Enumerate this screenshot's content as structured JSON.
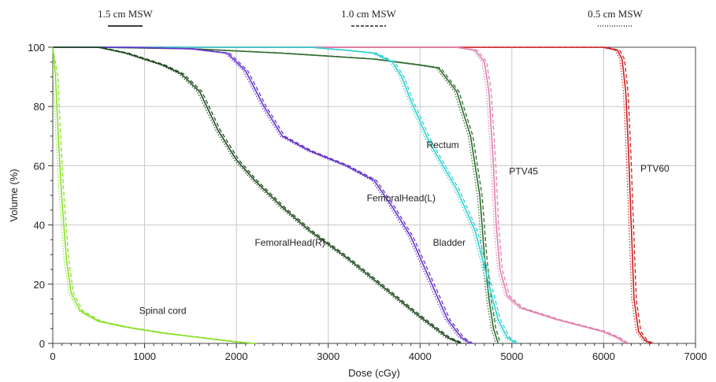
{
  "chart_data": {
    "type": "line",
    "title": "",
    "xlabel": "Dose (cGy)",
    "ylabel": "Volume (%)",
    "xlim": [
      0,
      7000
    ],
    "ylim": [
      0,
      100
    ],
    "x_ticks": [
      "0",
      "1000",
      "2000",
      "3000",
      "4000",
      "5000",
      "6000",
      "7000"
    ],
    "y_ticks": [
      "0",
      "20",
      "40",
      "60",
      "80",
      "100"
    ],
    "grid": true,
    "legend_position": "top",
    "legend": [
      {
        "label": "1.5 cm MSW",
        "style": "solid"
      },
      {
        "label": "1.0 cm MSW",
        "style": "dashed"
      },
      {
        "label": "0.5 cm MSW",
        "style": "dotted"
      }
    ],
    "structures": [
      {
        "name": "PTV60",
        "label": "PTV60",
        "color": "#cc1f1f",
        "label_pos": [
          6400,
          58
        ],
        "x": [
          0,
          6000,
          6150,
          6200,
          6240,
          6270,
          6300,
          6330,
          6380,
          6450,
          6520
        ],
        "y": [
          100,
          100,
          99,
          96,
          85,
          65,
          40,
          15,
          4,
          1,
          0
        ]
      },
      {
        "name": "PTV45",
        "label": "PTV45",
        "color": "#e07fae",
        "label_pos": [
          4970,
          57
        ],
        "x": [
          0,
          4400,
          4600,
          4700,
          4750,
          4800,
          4830,
          4870,
          4950,
          5100,
          5500,
          6000,
          6150,
          6250
        ],
        "y": [
          100,
          100,
          99,
          95,
          85,
          60,
          40,
          25,
          16,
          12,
          8,
          4,
          2,
          0
        ]
      },
      {
        "name": "Rectum",
        "label": "Rectum",
        "color": "#2e6b2e",
        "label_pos": [
          4070,
          66
        ],
        "x": [
          0,
          500,
          1500,
          2500,
          3500,
          4000,
          4200,
          4400,
          4550,
          4650,
          4700,
          4750,
          4800,
          4850
        ],
        "y": [
          100,
          100,
          99.5,
          98,
          96,
          94,
          93,
          85,
          70,
          50,
          30,
          15,
          5,
          0
        ]
      },
      {
        "name": "Bladder",
        "label": "Bladder",
        "color": "#30d0d0",
        "label_pos": [
          4140,
          33
        ],
        "x": [
          0,
          2800,
          3200,
          3500,
          3700,
          3800,
          3900,
          4100,
          4400,
          4600,
          4750,
          4850,
          4950,
          5050
        ],
        "y": [
          100,
          100,
          99,
          98,
          95,
          90,
          82,
          68,
          52,
          38,
          20,
          8,
          2,
          0
        ]
      },
      {
        "name": "FemoralHead(L)",
        "label": "FemoralHead(L)",
        "color": "#6633cc",
        "label_pos": [
          3420,
          48
        ],
        "x": [
          0,
          800,
          1500,
          1900,
          2100,
          2300,
          2500,
          2800,
          3200,
          3500,
          3700,
          3900,
          4100,
          4300,
          4450,
          4550
        ],
        "y": [
          100,
          100,
          99.5,
          98,
          92,
          80,
          70,
          65,
          60,
          55,
          46,
          36,
          22,
          8,
          2,
          0
        ]
      },
      {
        "name": "FemoralHead(R)",
        "label": "FemoralHead(R)",
        "color": "#1e4a1e",
        "label_pos": [
          2200,
          33
        ],
        "x": [
          0,
          500,
          800,
          1000,
          1200,
          1400,
          1600,
          1800,
          2000,
          2200,
          2500,
          2800,
          3200,
          3600,
          4000,
          4300,
          4450
        ],
        "y": [
          100,
          100,
          98,
          96,
          94,
          91,
          85,
          72,
          62,
          55,
          46,
          38,
          29,
          19,
          9,
          2,
          0
        ]
      },
      {
        "name": "Spinal cord",
        "label": "Spinal cord",
        "color": "#88e02a",
        "label_pos": [
          940,
          10
        ],
        "x": [
          0,
          30,
          60,
          100,
          150,
          200,
          300,
          500,
          800,
          1200,
          1600,
          2000,
          2200
        ],
        "y": [
          100,
          90,
          70,
          48,
          28,
          17,
          11,
          7.5,
          5.5,
          3.5,
          2,
          0.5,
          0
        ]
      }
    ]
  }
}
